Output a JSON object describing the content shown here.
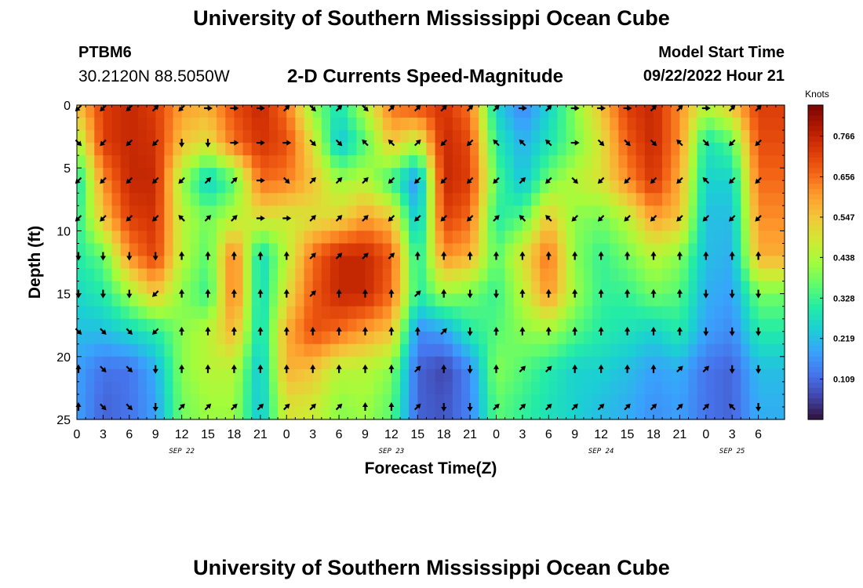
{
  "header": {
    "title": "University of Southern Mississippi Ocean Cube",
    "station": "PTBM6",
    "coords": "30.2120N  88.5050W",
    "subtitle": "2-D Currents Speed-Magnitude",
    "model_label": "Model Start Time",
    "model_time": "09/22/2022 Hour 21"
  },
  "footer": {
    "title": "University of Southern Mississippi Ocean Cube"
  },
  "colors": {
    "palette": [
      "#30123b",
      "#4145ab",
      "#4675ed",
      "#39a2fc",
      "#1bcfd4",
      "#24eca6",
      "#61fc6c",
      "#a4fc3b",
      "#d1e834",
      "#f3c63a",
      "#fe9b2d",
      "#f36315",
      "#d93806",
      "#b11901",
      "#7a0402"
    ],
    "arrow": "#000000"
  },
  "chart_data": {
    "type": "heatmap",
    "title": "2-D Currents Speed-Magnitude",
    "xlabel": "Forecast Time(Z)",
    "ylabel": "Depth (ft)",
    "ylim": [
      0,
      25
    ],
    "xlim": [
      0,
      81
    ],
    "y_ticks": [
      "0",
      "5",
      "10",
      "15",
      "20",
      "25"
    ],
    "y_tick_values": [
      0,
      5,
      10,
      15,
      20,
      25
    ],
    "x_ticks": [
      "0",
      "3",
      "6",
      "9",
      "12",
      "15",
      "18",
      "21",
      "0",
      "3",
      "6",
      "9",
      "12",
      "15",
      "18",
      "21",
      "0",
      "3",
      "6",
      "9",
      "12",
      "15",
      "18",
      "21",
      "0",
      "3",
      "6"
    ],
    "x_tick_values": [
      0,
      3,
      6,
      9,
      12,
      15,
      18,
      21,
      24,
      27,
      30,
      33,
      36,
      39,
      42,
      45,
      48,
      51,
      54,
      57,
      60,
      63,
      66,
      69,
      72,
      75,
      78
    ],
    "date_labels": [
      {
        "label": "SEP 22",
        "hour": 12
      },
      {
        "label": "SEP 23",
        "hour": 36
      },
      {
        "label": "SEP 24",
        "hour": 60
      },
      {
        "label": "SEP 25",
        "hour": 75
      }
    ],
    "colorbar": {
      "label": "Knots",
      "ticks": [
        "0.766",
        "0.656",
        "0.547",
        "0.438",
        "0.328",
        "0.219",
        "0.109"
      ],
      "tick_values": [
        0.766,
        0.656,
        0.547,
        0.438,
        0.328,
        0.219,
        0.109
      ],
      "range": [
        0.0,
        0.85
      ]
    },
    "hours": [
      0,
      3,
      6,
      9,
      12,
      15,
      18,
      21,
      24,
      27,
      30,
      33,
      36,
      39,
      42,
      45,
      48,
      51,
      54,
      57,
      60,
      63,
      66,
      69,
      72,
      75,
      78
    ],
    "depths": [
      0,
      3,
      6,
      9,
      12,
      15,
      18,
      21,
      24
    ],
    "speed_knots": [
      [
        0.55,
        0.72,
        0.76,
        0.72,
        0.6,
        0.58,
        0.7,
        0.76,
        0.65,
        0.4,
        0.28,
        0.45,
        0.65,
        0.7,
        0.74,
        0.65,
        0.25,
        0.14,
        0.25,
        0.4,
        0.55,
        0.72,
        0.76,
        0.62,
        0.45,
        0.55,
        0.72
      ],
      [
        0.42,
        0.72,
        0.76,
        0.74,
        0.55,
        0.5,
        0.66,
        0.74,
        0.7,
        0.5,
        0.22,
        0.35,
        0.55,
        0.45,
        0.76,
        0.7,
        0.3,
        0.2,
        0.28,
        0.38,
        0.5,
        0.68,
        0.76,
        0.62,
        0.28,
        0.35,
        0.7
      ],
      [
        0.26,
        0.62,
        0.76,
        0.76,
        0.42,
        0.24,
        0.35,
        0.66,
        0.64,
        0.55,
        0.42,
        0.45,
        0.32,
        0.15,
        0.76,
        0.72,
        0.35,
        0.22,
        0.38,
        0.45,
        0.5,
        0.62,
        0.74,
        0.58,
        0.25,
        0.25,
        0.66
      ],
      [
        0.3,
        0.55,
        0.72,
        0.74,
        0.45,
        0.38,
        0.45,
        0.5,
        0.48,
        0.5,
        0.52,
        0.6,
        0.55,
        0.2,
        0.72,
        0.66,
        0.3,
        0.35,
        0.55,
        0.4,
        0.38,
        0.45,
        0.6,
        0.55,
        0.22,
        0.22,
        0.62
      ],
      [
        0.3,
        0.36,
        0.62,
        0.72,
        0.45,
        0.35,
        0.66,
        0.25,
        0.45,
        0.66,
        0.76,
        0.76,
        0.68,
        0.28,
        0.62,
        0.58,
        0.35,
        0.5,
        0.66,
        0.4,
        0.32,
        0.38,
        0.45,
        0.4,
        0.22,
        0.2,
        0.58
      ],
      [
        0.26,
        0.3,
        0.42,
        0.55,
        0.4,
        0.32,
        0.66,
        0.25,
        0.5,
        0.68,
        0.76,
        0.76,
        0.66,
        0.3,
        0.42,
        0.38,
        0.32,
        0.45,
        0.62,
        0.42,
        0.32,
        0.32,
        0.38,
        0.35,
        0.2,
        0.18,
        0.38
      ],
      [
        0.22,
        0.22,
        0.26,
        0.3,
        0.4,
        0.45,
        0.58,
        0.25,
        0.58,
        0.7,
        0.66,
        0.6,
        0.55,
        0.15,
        0.18,
        0.3,
        0.35,
        0.4,
        0.42,
        0.35,
        0.3,
        0.28,
        0.25,
        0.3,
        0.18,
        0.15,
        0.3
      ],
      [
        0.18,
        0.12,
        0.12,
        0.2,
        0.4,
        0.45,
        0.45,
        0.22,
        0.58,
        0.55,
        0.45,
        0.45,
        0.4,
        0.1,
        0.06,
        0.15,
        0.4,
        0.35,
        0.3,
        0.25,
        0.25,
        0.22,
        0.18,
        0.2,
        0.12,
        0.1,
        0.22
      ],
      [
        0.18,
        0.1,
        0.12,
        0.18,
        0.38,
        0.42,
        0.42,
        0.22,
        0.5,
        0.48,
        0.4,
        0.42,
        0.36,
        0.1,
        0.08,
        0.14,
        0.36,
        0.32,
        0.28,
        0.25,
        0.22,
        0.2,
        0.16,
        0.18,
        0.12,
        0.1,
        0.2
      ]
    ],
    "direction_deg": [
      [
        225,
        225,
        225,
        45,
        225,
        90,
        90,
        90,
        45,
        135,
        45,
        135,
        45,
        45,
        45,
        45,
        45,
        90,
        45,
        90,
        90,
        90,
        45,
        45,
        90,
        45,
        45
      ],
      [
        135,
        225,
        225,
        225,
        180,
        180,
        90,
        90,
        90,
        135,
        135,
        315,
        315,
        45,
        225,
        225,
        315,
        315,
        315,
        90,
        135,
        135,
        135,
        315,
        135,
        225,
        225
      ],
      [
        225,
        225,
        225,
        225,
        225,
        45,
        45,
        90,
        135,
        45,
        45,
        45,
        225,
        225,
        225,
        225,
        225,
        45,
        225,
        135,
        225,
        225,
        225,
        225,
        315,
        225,
        225
      ],
      [
        225,
        225,
        225,
        225,
        315,
        45,
        45,
        90,
        90,
        45,
        45,
        45,
        225,
        225,
        225,
        225,
        45,
        315,
        315,
        225,
        225,
        225,
        225,
        225,
        225,
        225,
        225
      ],
      [
        180,
        180,
        180,
        180,
        0,
        0,
        0,
        0,
        0,
        45,
        45,
        45,
        45,
        0,
        0,
        0,
        0,
        0,
        0,
        0,
        0,
        0,
        0,
        0,
        0,
        0,
        0
      ],
      [
        180,
        180,
        180,
        225,
        0,
        0,
        0,
        0,
        0,
        45,
        0,
        0,
        0,
        45,
        0,
        180,
        180,
        0,
        0,
        0,
        0,
        0,
        0,
        0,
        180,
        180,
        180
      ],
      [
        135,
        135,
        135,
        225,
        0,
        0,
        0,
        0,
        0,
        0,
        0,
        0,
        0,
        0,
        45,
        180,
        0,
        0,
        0,
        0,
        0,
        0,
        0,
        0,
        180,
        180,
        180
      ],
      [
        0,
        135,
        135,
        180,
        0,
        0,
        0,
        0,
        0,
        0,
        0,
        0,
        0,
        45,
        0,
        180,
        0,
        45,
        45,
        0,
        0,
        0,
        0,
        45,
        45,
        180,
        180
      ],
      [
        0,
        135,
        135,
        180,
        45,
        45,
        45,
        45,
        45,
        45,
        45,
        0,
        0,
        45,
        180,
        180,
        45,
        45,
        45,
        45,
        45,
        45,
        45,
        45,
        45,
        315,
        180
      ]
    ]
  }
}
